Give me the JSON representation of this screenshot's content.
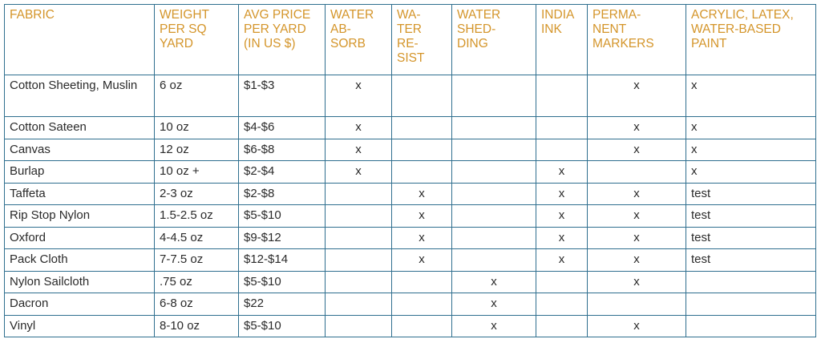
{
  "headers": [
    "FABRIC",
    "WEIGHT\nPER SQ\nYARD",
    "AVG PRICE\nPER YARD\n(IN US $)",
    "WATER\nAB-\nSORB",
    "WA-\nTER\nRE-\nSIST",
    "WATER\nSHED-\nDING",
    "INDIA\nINK",
    "PERMA-\nNENT\nMARKERS",
    "ACRYLIC, LATEX,\nWATER-BASED\nPAINT"
  ],
  "rows": [
    [
      "Cotton Sheeting, Muslin",
      "6 oz",
      "$1-$3",
      "x",
      "",
      "",
      "",
      "x",
      "x"
    ],
    [
      "Cotton Sateen",
      "10 oz",
      "$4-$6",
      "x",
      "",
      "",
      "",
      "x",
      "x"
    ],
    [
      "Canvas",
      "12 oz",
      "$6-$8",
      "x",
      "",
      "",
      "",
      "x",
      "x"
    ],
    [
      "Burlap",
      "10 oz +",
      "$2-$4",
      "x",
      "",
      "",
      "x",
      "",
      "x"
    ],
    [
      "Taffeta",
      "2-3 oz",
      "$2-$8",
      "",
      "x",
      "",
      "x",
      "x",
      "test"
    ],
    [
      "Rip Stop Nylon",
      "1.5-2.5 oz",
      "$5-$10",
      "",
      "x",
      "",
      "x",
      "x",
      "test"
    ],
    [
      "Oxford",
      "4-4.5 oz",
      "$9-$12",
      "",
      "x",
      "",
      "x",
      "x",
      "test"
    ],
    [
      "Pack Cloth",
      "7-7.5 oz",
      "$12-$14",
      "",
      "x",
      "",
      "x",
      "x",
      "test"
    ],
    [
      "Nylon Sailcloth",
      ".75 oz",
      "$5-$10",
      "",
      "",
      "x",
      "",
      "x",
      ""
    ],
    [
      "Dacron",
      "6-8 oz",
      "$22",
      "",
      "",
      "x",
      "",
      "",
      ""
    ],
    [
      "Vinyl",
      "8-10 oz",
      "$5-$10",
      "",
      "",
      "x",
      "",
      "x",
      ""
    ]
  ]
}
